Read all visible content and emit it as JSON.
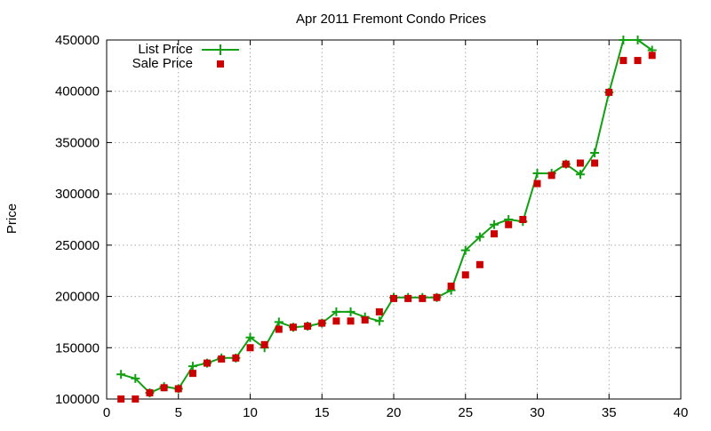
{
  "chart_data": {
    "type": "line",
    "title": "Apr 2011 Fremont Condo Prices",
    "xlabel": "",
    "ylabel": "Price",
    "xlim": [
      0,
      40
    ],
    "ylim": [
      100000,
      450000
    ],
    "xticks": [
      0,
      5,
      10,
      15,
      20,
      25,
      30,
      35,
      40
    ],
    "yticks": [
      100000,
      150000,
      200000,
      250000,
      300000,
      350000,
      400000,
      450000
    ],
    "grid": true,
    "legend_position": "top-left",
    "series": [
      {
        "name": "List Price",
        "style": "line-with-plus-markers",
        "color": "#11a011",
        "x": [
          1,
          2,
          3,
          4,
          5,
          6,
          7,
          8,
          9,
          10,
          11,
          12,
          13,
          14,
          15,
          16,
          17,
          18,
          19,
          20,
          21,
          22,
          23,
          24,
          25,
          26,
          27,
          28,
          29,
          30,
          31,
          32,
          33,
          34,
          35,
          36,
          37,
          38
        ],
        "values": [
          124000,
          120000,
          106000,
          112000,
          110000,
          132000,
          135000,
          140000,
          140000,
          160000,
          150000,
          175000,
          170000,
          171000,
          174000,
          185000,
          185000,
          180000,
          176000,
          199000,
          199000,
          199000,
          199000,
          206000,
          245000,
          258000,
          270000,
          275000,
          273000,
          320000,
          320000,
          329000,
          319000,
          340000,
          399000,
          450000,
          450000,
          440000
        ]
      },
      {
        "name": "Sale Price",
        "style": "square-markers",
        "color": "#cc0000",
        "x": [
          1,
          2,
          3,
          4,
          5,
          6,
          7,
          8,
          9,
          10,
          11,
          12,
          13,
          14,
          15,
          16,
          17,
          18,
          19,
          20,
          21,
          22,
          23,
          24,
          25,
          26,
          27,
          28,
          29,
          30,
          31,
          32,
          33,
          34,
          35,
          36,
          37,
          38
        ],
        "values": [
          100000,
          100000,
          106000,
          111000,
          110000,
          125000,
          135000,
          139000,
          140000,
          150000,
          153000,
          168000,
          170000,
          171000,
          174000,
          176000,
          176000,
          177000,
          185000,
          198000,
          198000,
          198000,
          199000,
          210000,
          221000,
          231000,
          261000,
          270000,
          275000,
          310000,
          318000,
          329000,
          330000,
          330000,
          399000,
          430000,
          430000,
          435000
        ]
      }
    ]
  }
}
